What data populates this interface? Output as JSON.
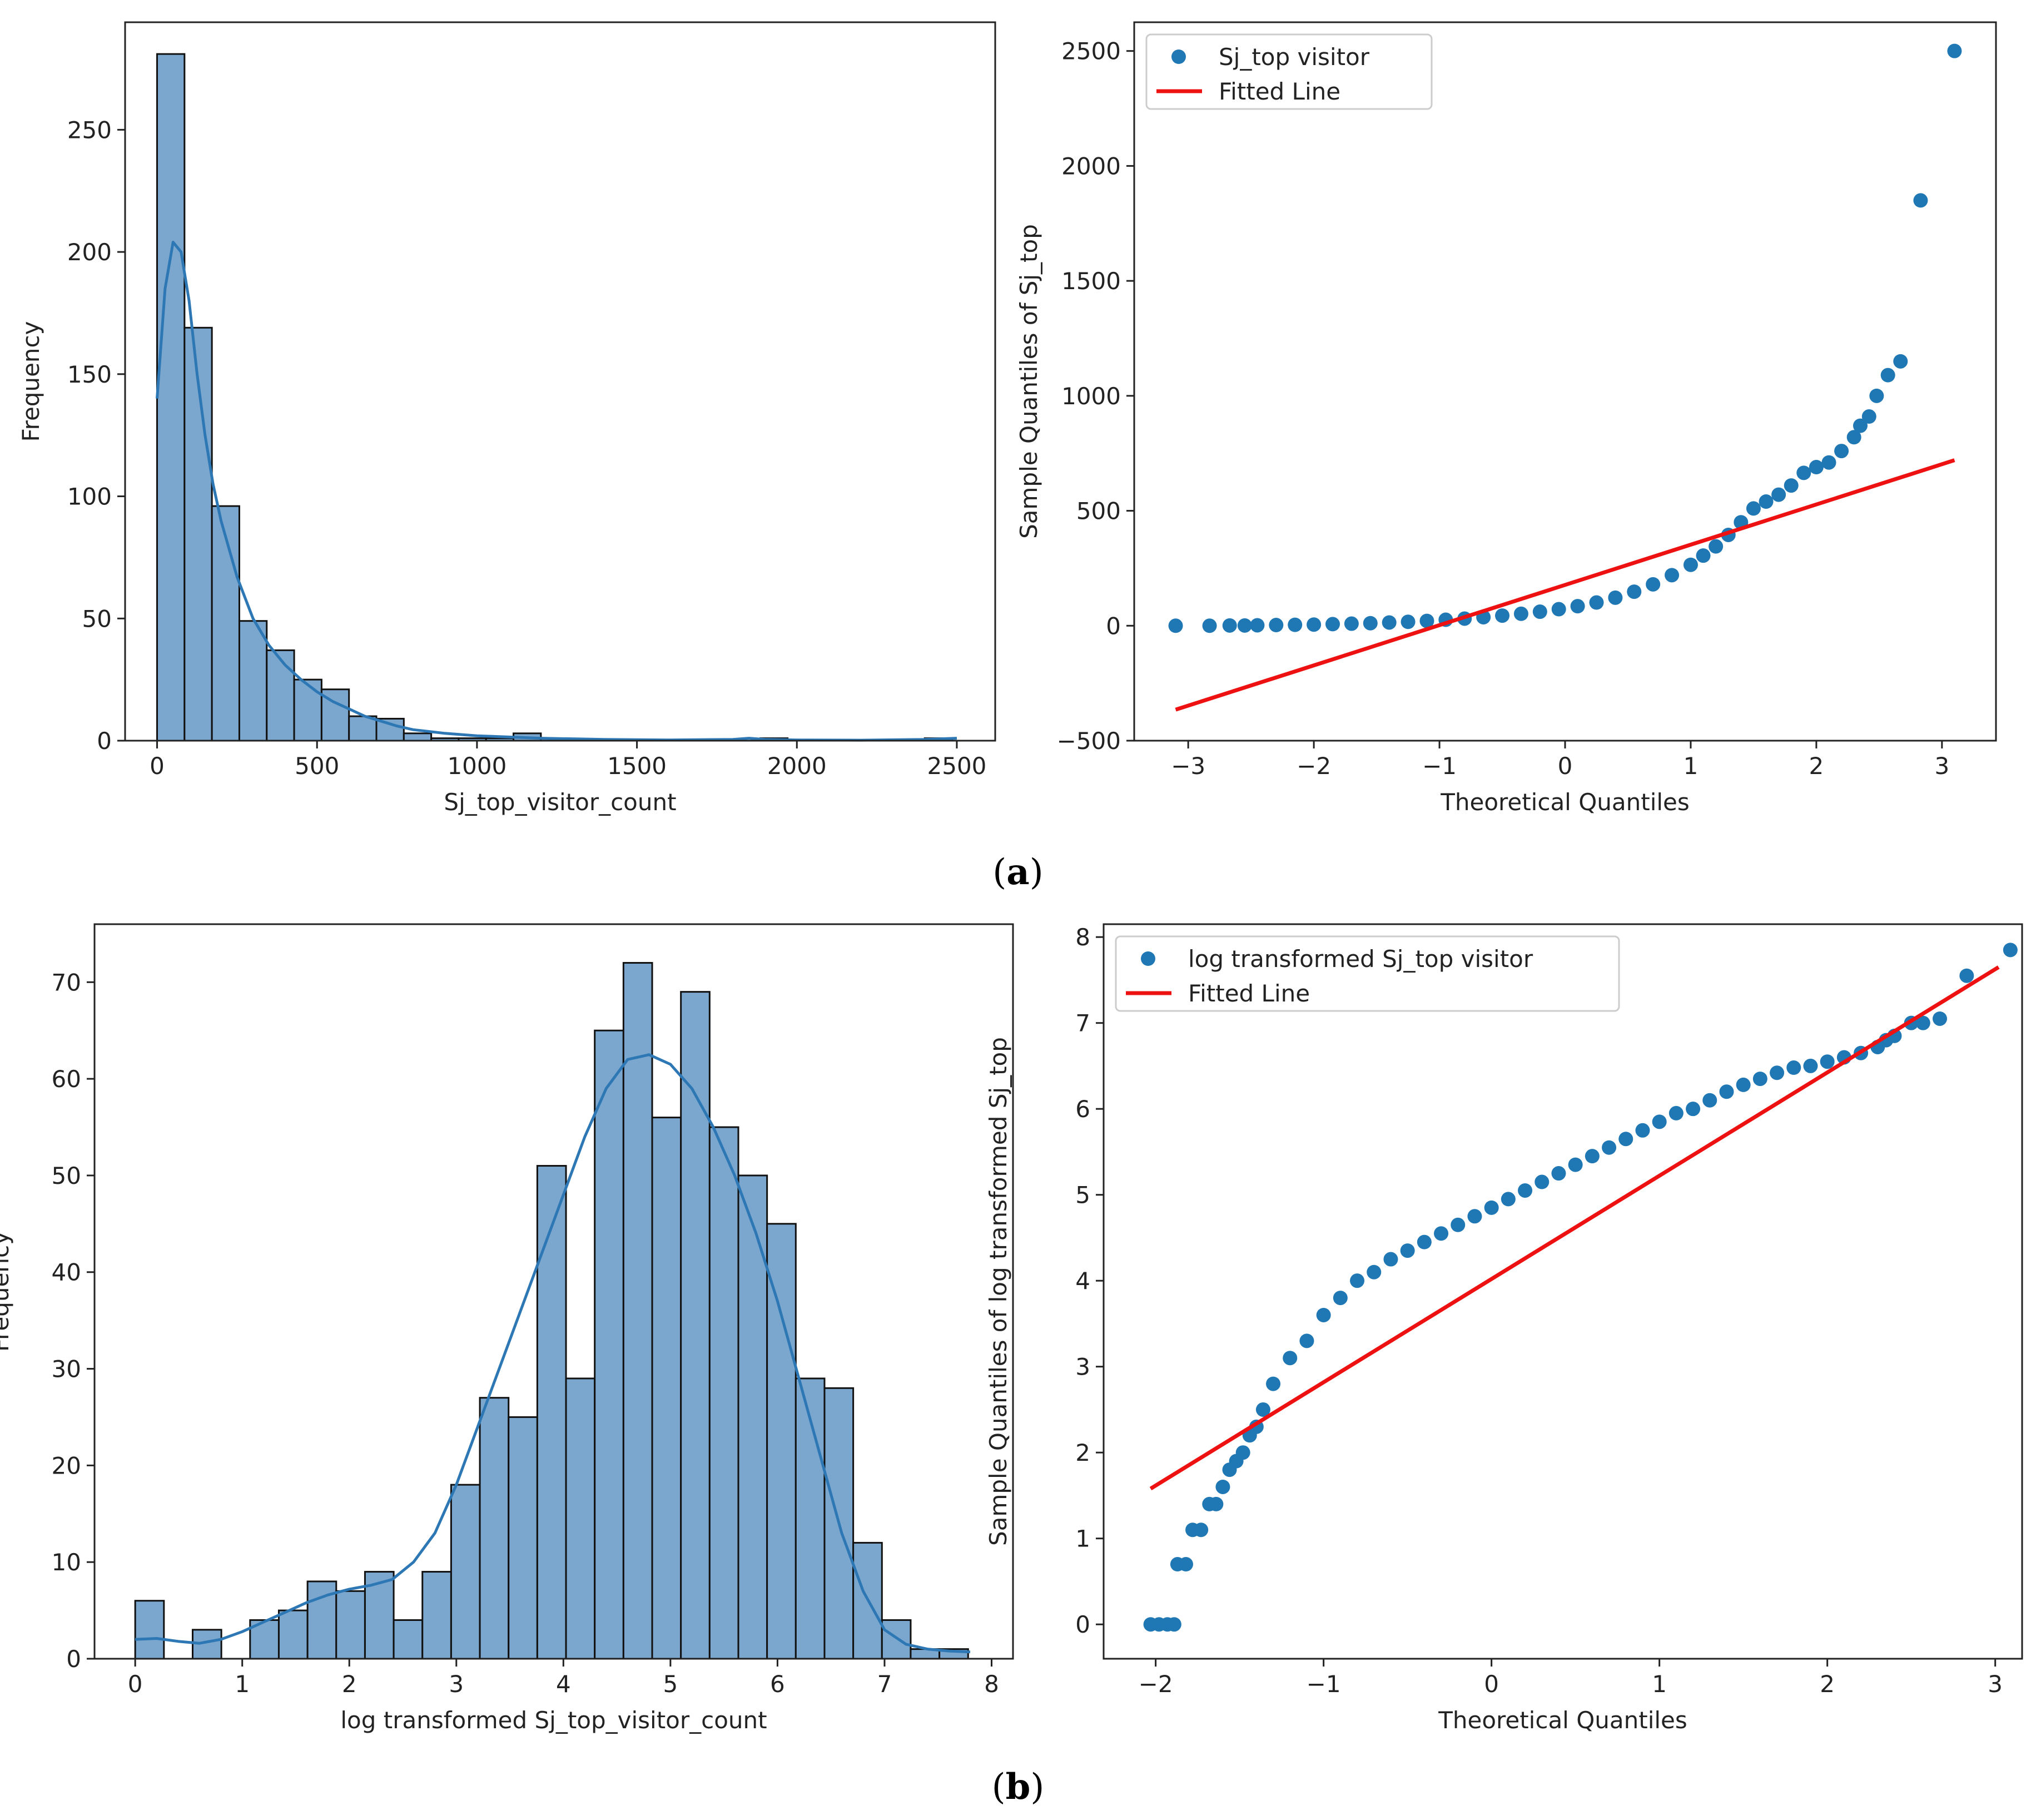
{
  "colors": {
    "bar": "#7ba7cf",
    "kde": "#2d78b4",
    "point": "#1f77b4",
    "fit": "#ee1111",
    "axis": "#222222"
  },
  "captions": [
    "a",
    "b"
  ],
  "chart_data": [
    {
      "type": "bar",
      "title": "",
      "xlabel": "Sj_top_visitor_count",
      "ylabel": "Frequency",
      "xlim": [
        -100,
        2620
      ],
      "ylim": [
        0,
        294
      ],
      "xticks": [
        0,
        500,
        1000,
        1500,
        2000,
        2500
      ],
      "yticks": [
        0,
        50,
        100,
        150,
        200,
        250
      ],
      "bin_width": 85.7,
      "bin_start": 0,
      "values": [
        281,
        169,
        96,
        49,
        37,
        25,
        21,
        10,
        9,
        3,
        1,
        1,
        1,
        3,
        1,
        0,
        0,
        0,
        0,
        0,
        0,
        0,
        1,
        0,
        0,
        0,
        0,
        0,
        1
      ],
      "kde": {
        "x": [
          0,
          25,
          50,
          75,
          100,
          125,
          150,
          175,
          200,
          250,
          300,
          350,
          400,
          450,
          500,
          550,
          600,
          650,
          700,
          750,
          800,
          900,
          1000,
          1100,
          1200,
          1400,
          1600,
          1800,
          1850,
          1900,
          2000,
          2200,
          2400,
          2500
        ],
        "y": [
          140,
          185,
          204,
          200,
          180,
          150,
          125,
          105,
          90,
          67,
          50,
          39,
          31,
          25,
          20,
          16,
          13,
          10,
          8,
          6,
          4.5,
          3,
          2,
          1.5,
          1,
          0.5,
          0.3,
          0.5,
          1,
          0.5,
          0.3,
          0.2,
          0.5,
          1
        ]
      }
    },
    {
      "type": "scatter",
      "title": "",
      "xlabel": "Theoretical Quantiles",
      "ylabel": "Sample Quantiles of Sj_top",
      "xlim": [
        -3.43,
        3.43
      ],
      "ylim": [
        -500,
        2625
      ],
      "xticks": [
        -3,
        -2,
        -1,
        0,
        1,
        2,
        3
      ],
      "yticks": [
        -500,
        0,
        500,
        1000,
        1500,
        2000,
        2500
      ],
      "legend_position": "top-left",
      "series": [
        {
          "name": "Sj_top visitor",
          "kind": "points",
          "x": [
            -3.1,
            -2.83,
            -2.67,
            -2.55,
            -2.45,
            -2.3,
            -2.15,
            -2.0,
            -1.85,
            -1.7,
            -1.55,
            -1.4,
            -1.25,
            -1.1,
            -0.95,
            -0.8,
            -0.65,
            -0.5,
            -0.35,
            -0.2,
            -0.05,
            0.1,
            0.25,
            0.4,
            0.55,
            0.7,
            0.85,
            1.0,
            1.1,
            1.2,
            1.3,
            1.4,
            1.5,
            1.6,
            1.7,
            1.8,
            1.9,
            2.0,
            2.1,
            2.2,
            2.3,
            2.35,
            2.42,
            2.48,
            2.57,
            2.67,
            2.83,
            3.1
          ],
          "y": [
            0,
            0,
            1,
            1,
            2,
            3,
            4,
            5,
            7,
            9,
            11,
            14,
            17,
            21,
            26,
            31,
            37,
            44,
            52,
            61,
            72,
            85,
            101,
            122,
            148,
            180,
            220,
            265,
            305,
            345,
            395,
            450,
            510,
            540,
            570,
            610,
            665,
            690,
            710,
            760,
            820,
            870,
            910,
            1000,
            1090,
            1150,
            1850,
            2500
          ]
        },
        {
          "name": "Fitted Line",
          "kind": "line",
          "x": [
            -3.1,
            3.1
          ],
          "y": [
            -365,
            720
          ]
        }
      ]
    },
    {
      "type": "bar",
      "title": "",
      "xlabel": "log transformed Sj_top_visitor_count",
      "ylabel": "Frequency",
      "xlim": [
        -0.38,
        8.2
      ],
      "ylim": [
        0,
        76
      ],
      "xticks": [
        0,
        1,
        2,
        3,
        4,
        5,
        6,
        7,
        8
      ],
      "yticks": [
        0,
        10,
        20,
        30,
        40,
        50,
        60,
        70
      ],
      "bin_width": 0.2683,
      "bin_start": 0,
      "values": [
        6,
        0,
        3,
        0,
        4,
        5,
        8,
        7,
        9,
        4,
        9,
        18,
        27,
        25,
        51,
        29,
        65,
        72,
        56,
        69,
        55,
        50,
        45,
        29,
        28,
        12,
        4,
        1,
        1
      ],
      "kde": {
        "x": [
          0,
          0.2,
          0.4,
          0.6,
          0.8,
          1.0,
          1.2,
          1.4,
          1.6,
          1.8,
          2.0,
          2.2,
          2.4,
          2.6,
          2.8,
          3.0,
          3.2,
          3.4,
          3.6,
          3.8,
          4.0,
          4.2,
          4.4,
          4.6,
          4.8,
          5.0,
          5.2,
          5.4,
          5.6,
          5.8,
          6.0,
          6.2,
          6.4,
          6.6,
          6.8,
          7.0,
          7.2,
          7.4,
          7.6,
          7.8
        ],
        "y": [
          2,
          2.1,
          1.8,
          1.6,
          2,
          2.8,
          3.8,
          4.8,
          5.8,
          6.6,
          7.2,
          7.6,
          8.2,
          10,
          13,
          18,
          24,
          30,
          36,
          42,
          48,
          54,
          59,
          62,
          62.5,
          61.5,
          59,
          55,
          50,
          44,
          37,
          29,
          21,
          13,
          7,
          3,
          1.5,
          1,
          0.8,
          0.7
        ]
      }
    },
    {
      "type": "scatter",
      "title": "",
      "xlabel": "Theoretical Quantiles",
      "ylabel": "Sample Quantiles of log transformed Sj_top",
      "xlim": [
        -2.31,
        3.16
      ],
      "ylim": [
        -0.4,
        8.15
      ],
      "xticks": [
        -2,
        -1,
        0,
        1,
        2,
        3
      ],
      "yticks": [
        0,
        1,
        2,
        3,
        4,
        5,
        6,
        7,
        8
      ],
      "legend_position": "top-left",
      "series": [
        {
          "name": "log transformed Sj_top visitor",
          "kind": "points",
          "x": [
            -2.03,
            -1.98,
            -1.93,
            -1.89,
            -1.87,
            -1.82,
            -1.78,
            -1.73,
            -1.68,
            -1.64,
            -1.6,
            -1.56,
            -1.52,
            -1.48,
            -1.44,
            -1.4,
            -1.36,
            -1.3,
            -1.2,
            -1.1,
            -1.0,
            -0.9,
            -0.8,
            -0.7,
            -0.6,
            -0.5,
            -0.4,
            -0.3,
            -0.2,
            -0.1,
            0.0,
            0.1,
            0.2,
            0.3,
            0.4,
            0.5,
            0.6,
            0.7,
            0.8,
            0.9,
            1.0,
            1.1,
            1.2,
            1.3,
            1.4,
            1.5,
            1.6,
            1.7,
            1.8,
            1.9,
            2.0,
            2.1,
            2.2,
            2.3,
            2.35,
            2.4,
            2.5,
            2.57,
            2.67,
            2.83,
            3.09
          ],
          "y": [
            0,
            0,
            0,
            0,
            0.7,
            0.7,
            1.1,
            1.1,
            1.4,
            1.4,
            1.6,
            1.8,
            1.9,
            2.0,
            2.2,
            2.3,
            2.5,
            2.8,
            3.1,
            3.3,
            3.6,
            3.8,
            4.0,
            4.1,
            4.25,
            4.35,
            4.45,
            4.55,
            4.65,
            4.75,
            4.85,
            4.95,
            5.05,
            5.15,
            5.25,
            5.35,
            5.45,
            5.55,
            5.65,
            5.75,
            5.85,
            5.95,
            6.0,
            6.1,
            6.2,
            6.28,
            6.35,
            6.42,
            6.48,
            6.5,
            6.55,
            6.6,
            6.65,
            6.72,
            6.8,
            6.85,
            7.0,
            7.0,
            7.05,
            7.55,
            7.85
          ]
        },
        {
          "name": "Fitted Line",
          "kind": "line",
          "x": [
            -2.03,
            3.02
          ],
          "y": [
            1.58,
            7.65
          ]
        }
      ]
    }
  ]
}
